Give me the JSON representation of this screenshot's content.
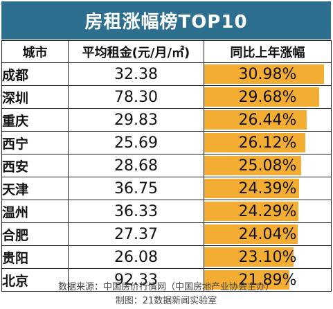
{
  "title": "房租涨幅榜TOP10",
  "headers": [
    "城市",
    "平均租金(元/月/㎡)",
    "同比上年涨幅"
  ],
  "chart_data": {
    "type": "table",
    "columns": [
      "城市",
      "平均租金(元/月/㎡)",
      "同比上年涨幅"
    ],
    "rows": [
      {
        "city": "成都",
        "rent": "32.38",
        "yoy": "30.98%",
        "yoy_value": 30.98
      },
      {
        "city": "深圳",
        "rent": "78.30",
        "yoy": "29.68%",
        "yoy_value": 29.68
      },
      {
        "city": "重庆",
        "rent": "29.83",
        "yoy": "26.44%",
        "yoy_value": 26.44
      },
      {
        "city": "西宁",
        "rent": "25.69",
        "yoy": "26.12%",
        "yoy_value": 26.12
      },
      {
        "city": "西安",
        "rent": "28.68",
        "yoy": "25.08%",
        "yoy_value": 25.08
      },
      {
        "city": "天津",
        "rent": "36.75",
        "yoy": "24.39%",
        "yoy_value": 24.39
      },
      {
        "city": "温州",
        "rent": "36.33",
        "yoy": "24.29%",
        "yoy_value": 24.29
      },
      {
        "city": "合肥",
        "rent": "27.37",
        "yoy": "24.04%",
        "yoy_value": 24.04
      },
      {
        "city": "贵阳",
        "rent": "26.08",
        "yoy": "23.10%",
        "yoy_value": 23.1
      },
      {
        "city": "北京",
        "rent": "92.33",
        "yoy": "21.89%",
        "yoy_value": 21.89
      }
    ],
    "bar_color": "#f2ad32"
  },
  "footer": {
    "source": "数据来源：中国房价行情网（中国房地产业协会主办）",
    "credit": "制图：21数据新闻实验室"
  },
  "colors": {
    "title_bg": "#2c6f8f",
    "bar": "#f2ad32"
  }
}
